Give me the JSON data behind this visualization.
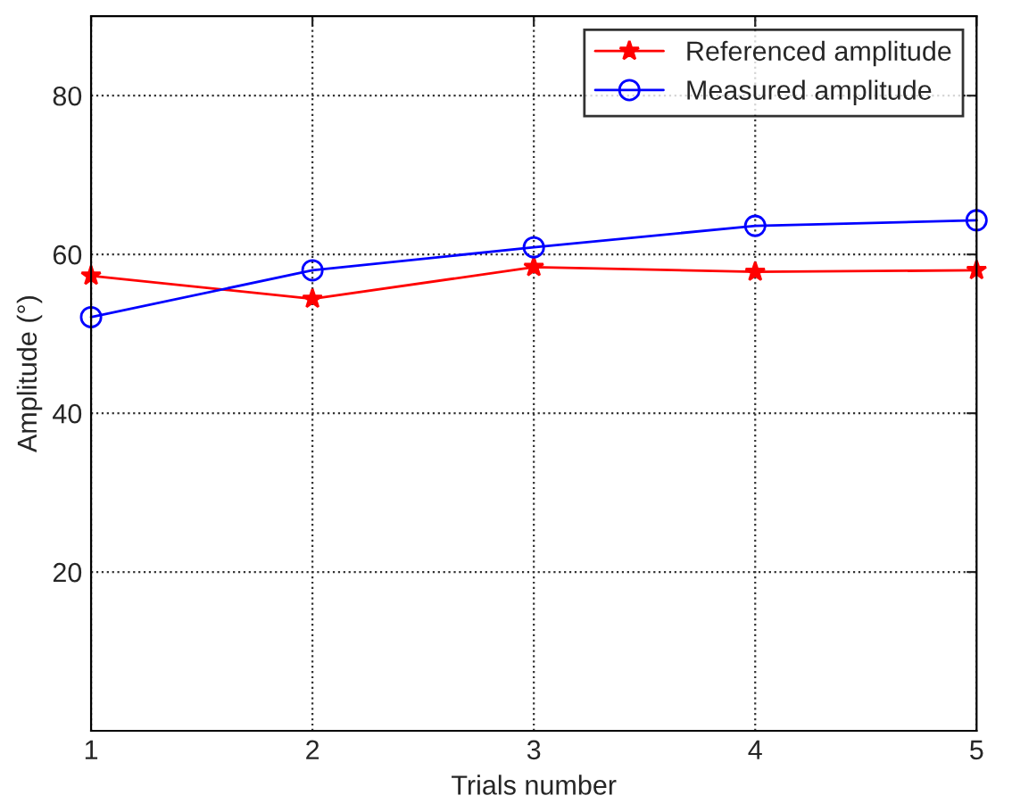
{
  "chart_data": {
    "type": "line",
    "xlabel": "Trials number",
    "ylabel": "Amplitude (°)",
    "x": [
      1,
      2,
      3,
      4,
      5
    ],
    "series": [
      {
        "name": "Referenced amplitude",
        "color": "#ff0000",
        "marker": "star",
        "values": [
          57.3,
          54.4,
          58.4,
          57.8,
          58.0
        ]
      },
      {
        "name": "Measured amplitude",
        "color": "#0000ff",
        "marker": "circle",
        "values": [
          52.1,
          58.0,
          60.9,
          63.6,
          64.3
        ]
      }
    ],
    "xlim": [
      1,
      5
    ],
    "ylim": [
      0,
      90
    ],
    "xticks": [
      1,
      2,
      3,
      4,
      5
    ],
    "yticks": [
      20,
      40,
      60,
      80
    ],
    "grid": true,
    "legend": "top right",
    "line_style": "solid"
  }
}
